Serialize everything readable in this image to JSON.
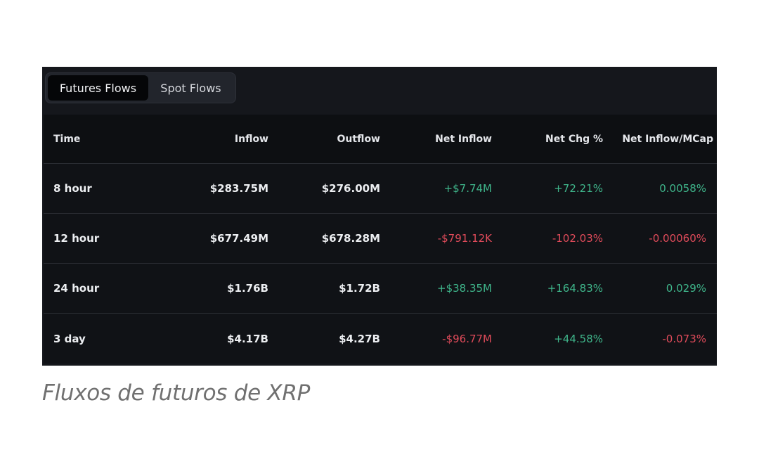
{
  "tabs": [
    {
      "label": "Futures Flows",
      "active": true
    },
    {
      "label": "Spot Flows",
      "active": false
    }
  ],
  "table": {
    "columns": [
      "Time",
      "Inflow",
      "Outflow",
      "Net Inflow",
      "Net Chg %",
      "Net Inflow/MCap"
    ],
    "rows": [
      {
        "time": "8 hour",
        "inflow": "$283.75M",
        "outflow": "$276.00M",
        "net_inflow": "+$7.74M",
        "net_chg": "+72.21%",
        "net_mcap": "0.0058%",
        "net_sign": "pos",
        "chg_sign": "pos",
        "mcap_sign": "pos"
      },
      {
        "time": "12 hour",
        "inflow": "$677.49M",
        "outflow": "$678.28M",
        "net_inflow": "-$791.12K",
        "net_chg": "-102.03%",
        "net_mcap": "-0.00060%",
        "net_sign": "neg",
        "chg_sign": "neg",
        "mcap_sign": "neg"
      },
      {
        "time": "24 hour",
        "inflow": "$1.76B",
        "outflow": "$1.72B",
        "net_inflow": "+$38.35M",
        "net_chg": "+164.83%",
        "net_mcap": "0.029%",
        "net_sign": "pos",
        "chg_sign": "pos",
        "mcap_sign": "pos"
      },
      {
        "time": "3 day",
        "inflow": "$4.17B",
        "outflow": "$4.27B",
        "net_inflow": "-$96.77M",
        "net_chg": "+44.58%",
        "net_mcap": "-0.073%",
        "net_sign": "neg",
        "chg_sign": "pos",
        "mcap_sign": "neg"
      }
    ]
  },
  "colors": {
    "positive": "#3fb68b",
    "negative": "#e04b5a",
    "panel_bg": "#15171c"
  },
  "caption": "Fluxos de futuros de XRP"
}
